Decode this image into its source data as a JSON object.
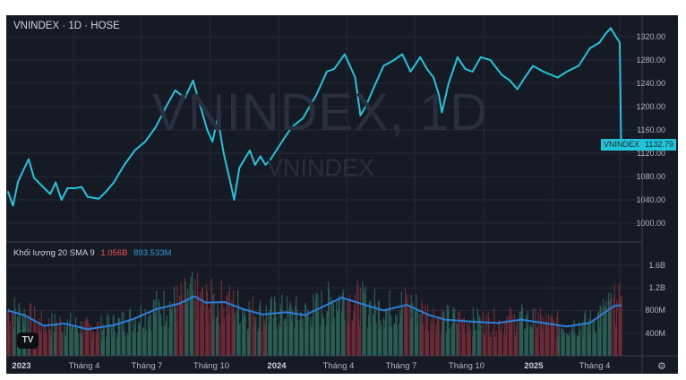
{
  "header": {
    "title": "VNINDEX · 1D · HOSE"
  },
  "watermark": {
    "big": "VNINDEX, 1D",
    "small": "VNINDEX"
  },
  "volume_legend": {
    "label": "Khối lượng 20 SMA 9",
    "vol_value": "1.056B",
    "sma_value": "893.533M"
  },
  "last_price": {
    "symbol": "VNINDEX",
    "value": "1132.79"
  },
  "price_axis": [
    "1320.00",
    "1280.00",
    "1240.00",
    "1200.00",
    "1160.00",
    "1120.00",
    "1080.00",
    "1040.00",
    "1000.00"
  ],
  "volume_axis": [
    "1.6B",
    "1.2B",
    "800M",
    "400M"
  ],
  "time_axis": [
    {
      "label": "2023",
      "year": true
    },
    {
      "label": "Tháng 4",
      "year": false
    },
    {
      "label": "Tháng 7",
      "year": false
    },
    {
      "label": "Tháng 10",
      "year": false
    },
    {
      "label": "2024",
      "year": true
    },
    {
      "label": "Tháng 4",
      "year": false
    },
    {
      "label": "Tháng 7",
      "year": false
    },
    {
      "label": "Tháng 10",
      "year": false
    },
    {
      "label": "2025",
      "year": true
    },
    {
      "label": "Tháng 4",
      "year": false
    }
  ],
  "logo": "TV",
  "settings_icon": "gear-icon",
  "colors": {
    "background": "#161a25",
    "price_line": "#22c4da",
    "sma_line": "#2b7fd8",
    "vol_up": "#2a5e55",
    "vol_down": "#6e2b35",
    "grid": "#262a36"
  },
  "chart_data": [
    {
      "type": "line",
      "title": "VNINDEX · 1D · HOSE",
      "series": [
        {
          "name": "VNINDEX",
          "points": [
            [
              "2023-01-03",
              1055
            ],
            [
              "2023-01-10",
              1030
            ],
            [
              "2023-01-17",
              1072
            ],
            [
              "2023-01-31",
              1110
            ],
            [
              "2023-02-07",
              1078
            ],
            [
              "2023-02-21",
              1060
            ],
            [
              "2023-03-01",
              1050
            ],
            [
              "2023-03-08",
              1070
            ],
            [
              "2023-03-16",
              1040
            ],
            [
              "2023-03-24",
              1060
            ],
            [
              "2023-04-03",
              1060
            ],
            [
              "2023-04-12",
              1062
            ],
            [
              "2023-04-20",
              1045
            ],
            [
              "2023-05-05",
              1042
            ],
            [
              "2023-05-15",
              1055
            ],
            [
              "2023-05-25",
              1070
            ],
            [
              "2023-06-08",
              1100
            ],
            [
              "2023-06-22",
              1125
            ],
            [
              "2023-07-06",
              1140
            ],
            [
              "2023-07-20",
              1165
            ],
            [
              "2023-08-03",
              1200
            ],
            [
              "2023-08-15",
              1228
            ],
            [
              "2023-08-28",
              1215
            ],
            [
              "2023-09-08",
              1245
            ],
            [
              "2023-09-18",
              1200
            ],
            [
              "2023-09-27",
              1160
            ],
            [
              "2023-10-04",
              1140
            ],
            [
              "2023-10-11",
              1180
            ],
            [
              "2023-10-19",
              1120
            ],
            [
              "2023-10-27",
              1075
            ],
            [
              "2023-11-02",
              1040
            ],
            [
              "2023-11-09",
              1095
            ],
            [
              "2023-11-16",
              1110
            ],
            [
              "2023-11-23",
              1125
            ],
            [
              "2023-11-30",
              1100
            ],
            [
              "2023-12-07",
              1115
            ],
            [
              "2023-12-14",
              1100
            ],
            [
              "2023-12-21",
              1110
            ],
            [
              "2024-01-05",
              1140
            ],
            [
              "2024-01-18",
              1165
            ],
            [
              "2024-02-02",
              1180
            ],
            [
              "2024-02-20",
              1220
            ],
            [
              "2024-03-05",
              1260
            ],
            [
              "2024-03-15",
              1265
            ],
            [
              "2024-03-29",
              1290
            ],
            [
              "2024-04-05",
              1270
            ],
            [
              "2024-04-12",
              1250
            ],
            [
              "2024-04-19",
              1185
            ],
            [
              "2024-04-26",
              1200
            ],
            [
              "2024-05-06",
              1230
            ],
            [
              "2024-05-20",
              1270
            ],
            [
              "2024-06-03",
              1280
            ],
            [
              "2024-06-14",
              1290
            ],
            [
              "2024-06-25",
              1260
            ],
            [
              "2024-07-08",
              1285
            ],
            [
              "2024-07-17",
              1265
            ],
            [
              "2024-07-26",
              1250
            ],
            [
              "2024-08-02",
              1220
            ],
            [
              "2024-08-06",
              1190
            ],
            [
              "2024-08-15",
              1240
            ],
            [
              "2024-08-27",
              1285
            ],
            [
              "2024-09-06",
              1265
            ],
            [
              "2024-09-16",
              1260
            ],
            [
              "2024-09-27",
              1285
            ],
            [
              "2024-10-10",
              1280
            ],
            [
              "2024-10-25",
              1255
            ],
            [
              "2024-11-05",
              1245
            ],
            [
              "2024-11-15",
              1230
            ],
            [
              "2024-11-25",
              1250
            ],
            [
              "2024-12-06",
              1270
            ],
            [
              "2024-12-20",
              1260
            ],
            [
              "2025-01-08",
              1250
            ],
            [
              "2025-01-20",
              1260
            ],
            [
              "2025-02-05",
              1270
            ],
            [
              "2025-02-20",
              1300
            ],
            [
              "2025-03-05",
              1310
            ],
            [
              "2025-03-13",
              1325
            ],
            [
              "2025-03-20",
              1335
            ],
            [
              "2025-03-27",
              1320
            ],
            [
              "2025-04-01",
              1310
            ],
            [
              "2025-04-03",
              1132.79
            ]
          ]
        }
      ],
      "ylim": [
        975,
        1340
      ],
      "xlim": [
        "2023-01-01",
        "2025-05-01"
      ]
    },
    {
      "type": "line",
      "title": "Khối lượng 20 SMA 9",
      "series": [
        {
          "name": "SMA 9",
          "points": [
            [
              "2023-01-03",
              800000000
            ],
            [
              "2023-01-25",
              720000000
            ],
            [
              "2023-02-20",
              530000000
            ],
            [
              "2023-03-20",
              570000000
            ],
            [
              "2023-04-20",
              470000000
            ],
            [
              "2023-05-25",
              540000000
            ],
            [
              "2023-06-20",
              650000000
            ],
            [
              "2023-07-20",
              820000000
            ],
            [
              "2023-08-20",
              920000000
            ],
            [
              "2023-09-10",
              1050000000
            ],
            [
              "2023-09-25",
              940000000
            ],
            [
              "2023-10-20",
              950000000
            ],
            [
              "2023-11-15",
              820000000
            ],
            [
              "2023-12-10",
              730000000
            ],
            [
              "2024-01-10",
              770000000
            ],
            [
              "2024-02-05",
              720000000
            ],
            [
              "2024-03-05",
              900000000
            ],
            [
              "2024-03-25",
              1030000000
            ],
            [
              "2024-04-20",
              920000000
            ],
            [
              "2024-05-20",
              800000000
            ],
            [
              "2024-06-20",
              900000000
            ],
            [
              "2024-07-20",
              720000000
            ],
            [
              "2024-08-10",
              640000000
            ],
            [
              "2024-09-20",
              600000000
            ],
            [
              "2024-10-20",
              580000000
            ],
            [
              "2024-11-20",
              640000000
            ],
            [
              "2024-12-20",
              580000000
            ],
            [
              "2025-01-20",
              520000000
            ],
            [
              "2025-02-20",
              580000000
            ],
            [
              "2025-03-10",
              750000000
            ],
            [
              "2025-03-25",
              880000000
            ],
            [
              "2025-04-03",
              893533000
            ]
          ]
        }
      ],
      "ylim": [
        0,
        2000000000
      ]
    }
  ]
}
